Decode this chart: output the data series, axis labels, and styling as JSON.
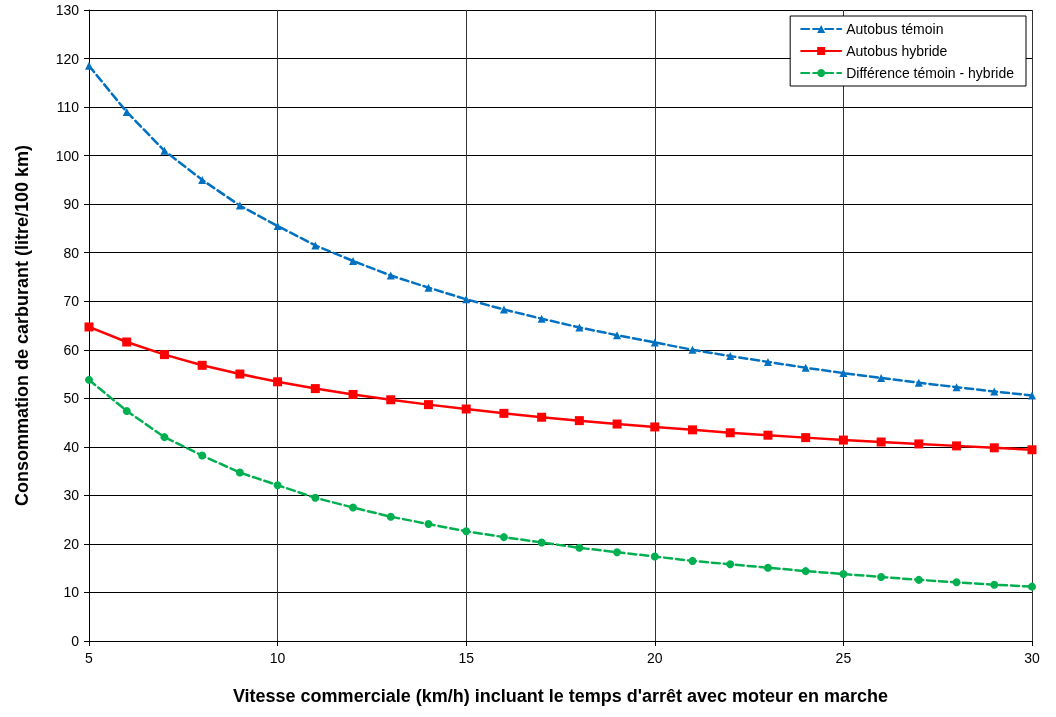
{
  "chart_data": {
    "type": "line",
    "xlabel": "Vitesse commerciale (km/h) incluant le temps d'arrêt avec moteur en marche",
    "ylabel": "Consommation de carburant (litre/100 km)",
    "x": [
      5,
      6,
      7,
      8,
      9,
      10,
      11,
      12,
      13,
      14,
      15,
      16,
      17,
      18,
      19,
      20,
      21,
      22,
      23,
      24,
      25,
      26,
      27,
      28,
      29,
      30
    ],
    "series": [
      {
        "name": "Autobus témoin",
        "color": "#0070c0",
        "marker": "triangle",
        "line_style": "dashed",
        "values": [
          118.5,
          109,
          101,
          95,
          89.7,
          85.5,
          81.5,
          78.3,
          75.3,
          72.8,
          70.4,
          68.3,
          66.4,
          64.6,
          63,
          61.5,
          60,
          58.7,
          57.5,
          56.3,
          55.2,
          54.2,
          53.2,
          52.3,
          51.4,
          50.6
        ]
      },
      {
        "name": "Autobus hybride",
        "color": "#ff0000",
        "marker": "square",
        "line_style": "solid",
        "values": [
          64.7,
          61.6,
          59,
          56.8,
          55,
          53.4,
          52,
          50.8,
          49.7,
          48.7,
          47.8,
          46.9,
          46.1,
          45.4,
          44.7,
          44.1,
          43.5,
          42.9,
          42.4,
          41.9,
          41.4,
          41,
          40.6,
          40.2,
          39.8,
          39.4
        ]
      },
      {
        "name": "Différence témoin - hybride",
        "color": "#00b050",
        "marker": "circle",
        "line_style": "dashed",
        "values": [
          53.8,
          47.4,
          42,
          38.2,
          34.7,
          32.1,
          29.5,
          27.5,
          25.6,
          24.1,
          22.6,
          21.4,
          20.3,
          19.2,
          18.3,
          17.4,
          16.5,
          15.8,
          15.1,
          14.4,
          13.8,
          13.2,
          12.6,
          12.1,
          11.6,
          11.2
        ]
      }
    ],
    "xlim": [
      5,
      30
    ],
    "xticks": [
      5,
      10,
      15,
      20,
      25,
      30
    ],
    "ylim": [
      0,
      130
    ],
    "yticks": [
      0,
      10,
      20,
      30,
      40,
      50,
      60,
      70,
      80,
      90,
      100,
      110,
      120,
      130
    ],
    "grid": true,
    "legend": "top right"
  }
}
